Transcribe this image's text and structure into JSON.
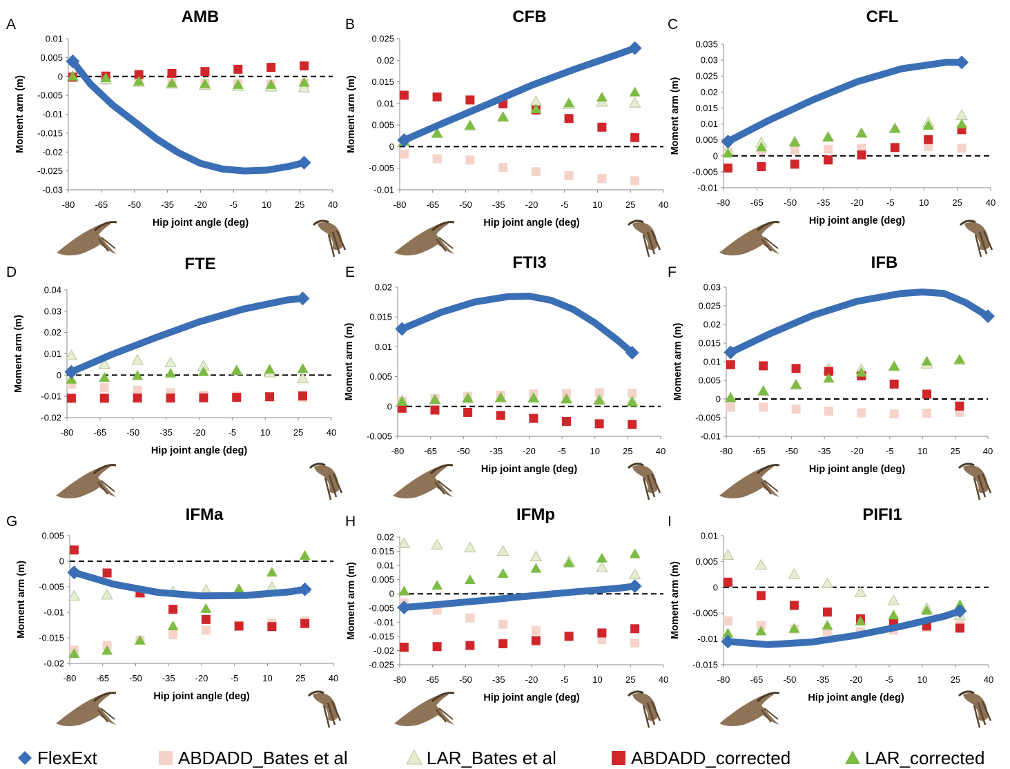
{
  "legend": {
    "items": [
      {
        "key": "FlexExt",
        "label": "FlexExt",
        "marker": "diamond",
        "color": "#3A6FB5"
      },
      {
        "key": "ABDADD_Bates",
        "label": "ABDADD_Bates et al",
        "marker": "square",
        "color": "#F5D3CB"
      },
      {
        "key": "LAR_Bates",
        "label": "LAR_Bates et al",
        "marker": "triangle",
        "color": "#E6EDD3"
      },
      {
        "key": "ABDADD_corrected",
        "label": "ABDADD_corrected",
        "marker": "square",
        "color": "#D0262B"
      },
      {
        "key": "LAR_corrected",
        "label": "LAR_corrected",
        "marker": "triangle",
        "color": "#7DBB42"
      }
    ]
  },
  "colors": {
    "FlexExt": "#3A6FB5",
    "ABDADD_Bates": "#F5D3CB",
    "LAR_Bates": "#E6EDD3",
    "LAR_Bates_stroke": "#B9C79A",
    "ABDADD_corrected": "#D0262B",
    "LAR_corrected": "#7DBB42",
    "zero_line": "#000000",
    "bird_icon": "#7A5A3A"
  },
  "x_points": [
    -78,
    -63,
    -48,
    -33,
    -18,
    -3,
    12,
    27
  ],
  "chart_data": [
    {
      "letter": "A",
      "type": "scatter",
      "title": "AMB",
      "xlabel": "Hip joint angle (deg)",
      "ylabel": "Moment arm (m)",
      "xlim": [
        -80,
        40
      ],
      "xticks": [
        "-80",
        "-65",
        "-50",
        "-35",
        "-20",
        "-5",
        "10",
        "25",
        "40"
      ],
      "ylim": [
        -0.03,
        0.01
      ],
      "yticks": [
        "0.01",
        "0.005",
        "0",
        "-0.005",
        "-0.01",
        "-0.015",
        "-0.02",
        "-0.025",
        "-0.03"
      ],
      "FlexExt": {
        "x": [
          -78,
          -70,
          -60,
          -50,
          -40,
          -30,
          -20,
          -10,
          0,
          10,
          20,
          27
        ],
        "y": [
          0.004,
          -0.002,
          -0.0075,
          -0.012,
          -0.0165,
          -0.0202,
          -0.023,
          -0.0245,
          -0.025,
          -0.0248,
          -0.0238,
          -0.0228
        ]
      },
      "ABDADD_Bates": [
        0,
        -0.001,
        -0.0013,
        -0.0017,
        -0.0018,
        -0.0019,
        -0.002,
        -0.0018
      ],
      "LAR_Bates": [
        0,
        -0.0008,
        -0.0015,
        -0.002,
        -0.0023,
        -0.0026,
        -0.0028,
        -0.003
      ],
      "ABDADD_corrected": [
        -0.0002,
        0.0001,
        0.0005,
        0.0008,
        0.0013,
        0.0019,
        0.0024,
        0.0028
      ],
      "LAR_corrected": [
        0,
        -0.0004,
        -0.0013,
        -0.0018,
        -0.002,
        -0.0022,
        -0.0022,
        -0.0016
      ]
    },
    {
      "letter": "B",
      "type": "scatter",
      "title": "CFB",
      "xlabel": "Hip joint angle (deg)",
      "ylabel": "Moment arm (m)",
      "xlim": [
        -80,
        40
      ],
      "xticks": [
        "-80",
        "-65",
        "-50",
        "-35",
        "-20",
        "-5",
        "10",
        "25",
        "40"
      ],
      "ylim": [
        -0.01,
        0.025
      ],
      "yticks": [
        "0.025",
        "0.02",
        "0.015",
        "0.01",
        "0.005",
        "0",
        "-0.005",
        "-0.01"
      ],
      "FlexExt": {
        "x": [
          -78,
          -60,
          -40,
          -20,
          0,
          20,
          27
        ],
        "y": [
          0.0015,
          0.0055,
          0.0098,
          0.0142,
          0.018,
          0.0215,
          0.0228
        ]
      },
      "ABDADD_Bates": [
        -0.0017,
        -0.0028,
        -0.0031,
        -0.0048,
        -0.0058,
        -0.0067,
        -0.0074,
        -0.0079
      ],
      "LAR_Bates": [
        0.0012,
        0.003,
        0.0048,
        0.0068,
        0.0104,
        0.0098,
        0.0103,
        0.0101
      ],
      "ABDADD_corrected": [
        0.0119,
        0.0115,
        0.0108,
        0.0099,
        0.0085,
        0.0065,
        0.0045,
        0.0021
      ],
      "LAR_corrected": [
        0.0012,
        0.0031,
        0.0049,
        0.0069,
        0.0087,
        0.0101,
        0.0114,
        0.0126
      ]
    },
    {
      "letter": "C",
      "type": "scatter",
      "title": "CFL",
      "xlabel": "Hip joint angle (deg)",
      "ylabel": "Moment arm (m)",
      "xlim": [
        -80,
        40
      ],
      "xticks": [
        "-80",
        "-65",
        "-50",
        "-35",
        "-20",
        "-5",
        "10",
        "25",
        "40"
      ],
      "ylim": [
        -0.01,
        0.035
      ],
      "yticks": [
        "0.035",
        "0.03",
        "0.025",
        "0.02",
        "0.015",
        "0.01",
        "0.005",
        "0",
        "-0.005",
        "-0.01"
      ],
      "FlexExt": {
        "x": [
          -78,
          -60,
          -40,
          -20,
          0,
          20,
          27
        ],
        "y": [
          0.0045,
          0.011,
          0.0175,
          0.0232,
          0.0273,
          0.0293,
          0.0293
        ]
      },
      "ABDADD_Bates": [
        0.0012,
        0.0018,
        0.0019,
        0.0021,
        0.0024,
        0.0026,
        0.0029,
        0.0024
      ],
      "LAR_Bates": [
        0.0019,
        0.0041,
        0.0045,
        0.0059,
        0.0071,
        0.0086,
        0.0104,
        0.0126
      ],
      "ABDADD_corrected": [
        -0.0038,
        -0.0034,
        -0.0026,
        -0.0013,
        0.0003,
        0.0026,
        0.0051,
        0.0082
      ],
      "LAR_corrected": [
        0.0008,
        0.0027,
        0.0042,
        0.0058,
        0.0071,
        0.0085,
        0.0095,
        0.0099
      ]
    },
    {
      "letter": "D",
      "type": "scatter",
      "title": "FTE",
      "xlabel": "Hip joint angle (deg)",
      "ylabel": "Moment arm (m)",
      "xlim": [
        -80,
        40
      ],
      "xticks": [
        "-80",
        "-65",
        "-50",
        "-35",
        "-20",
        "-5",
        "10",
        "25",
        "40"
      ],
      "ylim": [
        -0.02,
        0.04
      ],
      "yticks": [
        "0.04",
        "0.03",
        "0.02",
        "0.01",
        "0",
        "-0.01",
        "-0.02"
      ],
      "FlexExt": {
        "x": [
          -78,
          -60,
          -40,
          -20,
          0,
          20,
          27
        ],
        "y": [
          0.0015,
          0.0095,
          0.0175,
          0.025,
          0.031,
          0.0353,
          0.036
        ]
      },
      "ABDADD_Bates": [
        -0.0043,
        -0.0059,
        -0.0071,
        -0.0083,
        -0.0095,
        -0.0099,
        -0.0102,
        -0.0104
      ],
      "LAR_Bates": [
        0.0092,
        0.0051,
        0.007,
        0.0058,
        0.0042,
        0.0021,
        0.0011,
        -0.0017
      ],
      "ABDADD_corrected": [
        -0.0109,
        -0.0109,
        -0.0108,
        -0.0108,
        -0.0107,
        -0.0105,
        -0.0102,
        -0.0098
      ],
      "LAR_corrected": [
        -0.0021,
        -0.0012,
        -0.0003,
        0.0008,
        0.0015,
        0.0021,
        0.0026,
        0.003
      ]
    },
    {
      "letter": "E",
      "type": "scatter",
      "title": "FTI3",
      "xlabel": "Hip joint angle (deg)",
      "ylabel": "Moment arm (m)",
      "xlim": [
        -80,
        40
      ],
      "xticks": [
        "-80",
        "-65",
        "-50",
        "-35",
        "-20",
        "-5",
        "10",
        "25",
        "40"
      ],
      "ylim": [
        -0.005,
        0.02
      ],
      "yticks": [
        "0.02",
        "0.015",
        "0.01",
        "0.005",
        "0",
        "-0.005"
      ],
      "FlexExt": {
        "x": [
          -78,
          -60,
          -45,
          -30,
          -20,
          -10,
          0,
          10,
          20,
          27
        ],
        "y": [
          0.013,
          0.0158,
          0.0175,
          0.0184,
          0.0185,
          0.0178,
          0.0163,
          0.014,
          0.0112,
          0.009
        ]
      },
      "ABDADD_Bates": [
        0.0009,
        0.0013,
        0.0017,
        0.0019,
        0.0021,
        0.0022,
        0.0023,
        0.0022
      ],
      "LAR_Bates": [
        0.0009,
        0.0011,
        0.0013,
        0.0014,
        0.0014,
        0.0013,
        0.0012,
        0.0009
      ],
      "ABDADD_corrected": [
        -0.0003,
        -0.0006,
        -0.001,
        -0.0015,
        -0.002,
        -0.0025,
        -0.0029,
        -0.003
      ],
      "LAR_corrected": [
        0.0008,
        0.0011,
        0.0014,
        0.0015,
        0.0014,
        0.0012,
        0.001,
        0.0007
      ]
    },
    {
      "letter": "F",
      "type": "scatter",
      "title": "IFB",
      "xlabel": "Hip joint angle (deg)",
      "ylabel": "Moment arm (m)",
      "xlim": [
        -80,
        40
      ],
      "xticks": [
        "-80",
        "-65",
        "-50",
        "-35",
        "-20",
        "-5",
        "10",
        "25",
        "40"
      ],
      "ylim": [
        -0.01,
        0.03
      ],
      "yticks": [
        "0.03",
        "0.025",
        "0.02",
        "0.015",
        "0.01",
        "0.005",
        "0",
        "-0.005",
        "-0.01"
      ],
      "FlexExt": {
        "x": [
          -78,
          -60,
          -40,
          -20,
          0,
          10,
          20,
          30,
          40
        ],
        "y": [
          0.0125,
          0.0175,
          0.0225,
          0.0262,
          0.0283,
          0.0287,
          0.0283,
          0.0258,
          0.0222
        ]
      },
      "ABDADD_Bates": [
        -0.0022,
        -0.0022,
        -0.0027,
        -0.0033,
        -0.0037,
        -0.004,
        -0.0038,
        -0.0036
      ],
      "LAR_Bates": [
        0.0003,
        0.0021,
        0.0037,
        0.0081,
        0.0079,
        0.0087,
        0.0094,
        0.0104
      ],
      "ABDADD_corrected": [
        0.0092,
        0.0089,
        0.0082,
        0.0074,
        0.0062,
        0.004,
        0.0013,
        -0.0019
      ],
      "LAR_corrected": [
        0.0003,
        0.0021,
        0.0039,
        0.0055,
        0.0071,
        0.0088,
        0.0101,
        0.0106
      ]
    },
    {
      "letter": "G",
      "type": "scatter",
      "title": "IFMa",
      "xlabel": "Hip joint angle (deg)",
      "ylabel": "Moment arm (m)",
      "xlim": [
        -80,
        40
      ],
      "xticks": [
        "-80",
        "-65",
        "-50",
        "-35",
        "-20",
        "-5",
        "10",
        "25",
        "40"
      ],
      "ylim": [
        -0.02,
        0.005
      ],
      "yticks": [
        "0.005",
        "0",
        "-0.005",
        "-0.01",
        "-0.015",
        "-0.02"
      ],
      "FlexExt": {
        "x": [
          -78,
          -60,
          -40,
          -20,
          0,
          20,
          27
        ],
        "y": [
          -0.0022,
          -0.0045,
          -0.0061,
          -0.0068,
          -0.0067,
          -0.006,
          -0.0055
        ]
      },
      "ABDADD_Bates": [
        -0.0174,
        -0.0165,
        -0.0155,
        -0.0144,
        -0.0135,
        -0.0126,
        -0.0121,
        -0.0117
      ],
      "LAR_Bates": [
        -0.0068,
        -0.0066,
        -0.0062,
        -0.006,
        -0.0057,
        -0.0055,
        -0.0051,
        -0.0053
      ],
      "ABDADD_corrected": [
        0.0022,
        -0.0023,
        -0.0062,
        -0.0094,
        -0.0114,
        -0.0127,
        -0.0128,
        -0.0122
      ],
      "LAR_corrected": [
        -0.0181,
        -0.0175,
        -0.0155,
        -0.0127,
        -0.0093,
        -0.0055,
        -0.0022,
        0.0011
      ]
    },
    {
      "letter": "H",
      "type": "scatter",
      "title": "IFMp",
      "xlabel": "Hip joint angle (deg)",
      "ylabel": "Moment arm (m)",
      "xlim": [
        -80,
        40
      ],
      "xticks": [
        "-80",
        "-65",
        "-50",
        "-35",
        "-20",
        "-5",
        "10",
        "25",
        "40"
      ],
      "ylim": [
        -0.025,
        0.02
      ],
      "yticks": [
        "0.02",
        "0.015",
        "0.01",
        "0.005",
        "0",
        "-0.005",
        "-0.01",
        "-0.015",
        "-0.02",
        "-0.025"
      ],
      "FlexExt": {
        "x": [
          -78,
          -60,
          -40,
          -20,
          0,
          20,
          27
        ],
        "y": [
          -0.0048,
          -0.0036,
          -0.0022,
          -0.0007,
          0.0007,
          0.002,
          0.0027
        ]
      },
      "ABDADD_Bates": [
        -0.0032,
        -0.0057,
        -0.0085,
        -0.0107,
        -0.013,
        -0.0148,
        -0.0162,
        -0.0173
      ],
      "LAR_Bates": [
        0.0177,
        0.0172,
        0.0162,
        0.015,
        0.0131,
        0.0113,
        0.0092,
        0.0067
      ],
      "ABDADD_corrected": [
        -0.0188,
        -0.0186,
        -0.0182,
        -0.0176,
        -0.0165,
        -0.015,
        -0.0138,
        -0.0123
      ],
      "LAR_corrected": [
        0.0009,
        0.0029,
        0.0049,
        0.0071,
        0.0089,
        0.0108,
        0.0125,
        0.014
      ]
    },
    {
      "letter": "I",
      "type": "scatter",
      "title": "PIFI1",
      "xlabel": "Hip joint angle (deg)",
      "ylabel": "Moment arm (m)",
      "xlim": [
        -80,
        40
      ],
      "xticks": [
        "-80",
        "-65",
        "-50",
        "-35",
        "-20",
        "-5",
        "10",
        "25",
        "40"
      ],
      "ylim": [
        -0.015,
        0.01
      ],
      "yticks": [
        "0.01",
        "0.005",
        "0",
        "-0.005",
        "-0.01",
        "-0.015"
      ],
      "FlexExt": {
        "x": [
          -78,
          -60,
          -40,
          -20,
          0,
          20,
          27
        ],
        "y": [
          -0.0105,
          -0.0111,
          -0.0106,
          -0.0093,
          -0.0076,
          -0.0056,
          -0.0046
        ]
      },
      "ABDADD_Bates": [
        -0.0065,
        -0.0074,
        -0.0081,
        -0.0085,
        -0.0086,
        -0.0083,
        -0.0078,
        -0.0072
      ],
      "LAR_Bates": [
        0.0062,
        0.0043,
        0.0025,
        0.0007,
        -0.001,
        -0.0026,
        -0.0041,
        -0.0054
      ],
      "ABDADD_corrected": [
        0.001,
        -0.0016,
        -0.0035,
        -0.0048,
        -0.0061,
        -0.0069,
        -0.0075,
        -0.0079
      ],
      "LAR_corrected": [
        -0.0089,
        -0.0085,
        -0.008,
        -0.0074,
        -0.0066,
        -0.0054,
        -0.0045,
        -0.0034
      ]
    }
  ]
}
